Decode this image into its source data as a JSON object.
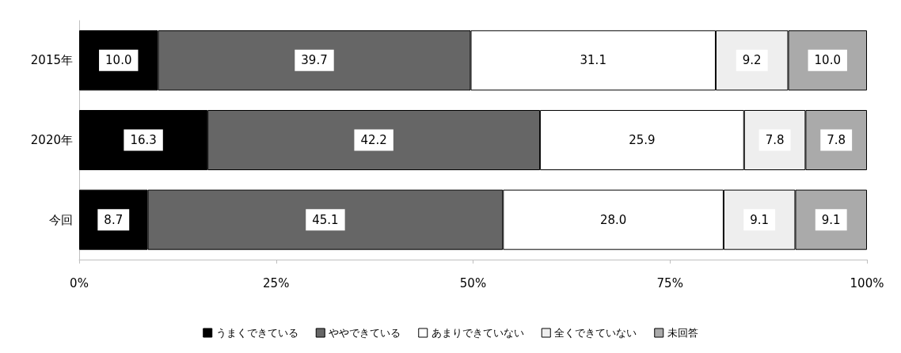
{
  "chart_data": {
    "type": "bar",
    "orientation": "horizontal",
    "stacked": true,
    "categories": [
      "2015年",
      "2020年",
      "今回"
    ],
    "series": [
      {
        "name": "うまくできている",
        "color": "#000000",
        "values": [
          10.0,
          16.3,
          8.7
        ],
        "value_labels": [
          "10.0",
          "16.3",
          "8.7"
        ]
      },
      {
        "name": "ややできている",
        "color": "#666666",
        "values": [
          39.7,
          42.2,
          45.1
        ],
        "value_labels": [
          "39.7",
          "42.2",
          "45.1"
        ]
      },
      {
        "name": "あまりできていない",
        "color": "#ffffff",
        "values": [
          31.1,
          25.9,
          28.0
        ],
        "value_labels": [
          "31.1",
          "25.9",
          "28.0"
        ]
      },
      {
        "name": "全くできていない",
        "color": "#eeeeee",
        "values": [
          9.2,
          7.8,
          9.1
        ],
        "value_labels": [
          "9.2",
          "7.8",
          "9.1"
        ]
      },
      {
        "name": "未回答",
        "color": "#aaaaaa",
        "values": [
          10.0,
          7.8,
          9.1
        ],
        "value_labels": [
          "10.0",
          "7.8",
          "9.1"
        ]
      }
    ],
    "xlim": [
      0,
      100
    ],
    "xticks": [
      {
        "value": 0,
        "label": "0%"
      },
      {
        "value": 25,
        "label": "25%"
      },
      {
        "value": 50,
        "label": "50%"
      },
      {
        "value": 75,
        "label": "75%"
      },
      {
        "value": 100,
        "label": "100%"
      }
    ],
    "grid": false,
    "legend": "bottom"
  }
}
